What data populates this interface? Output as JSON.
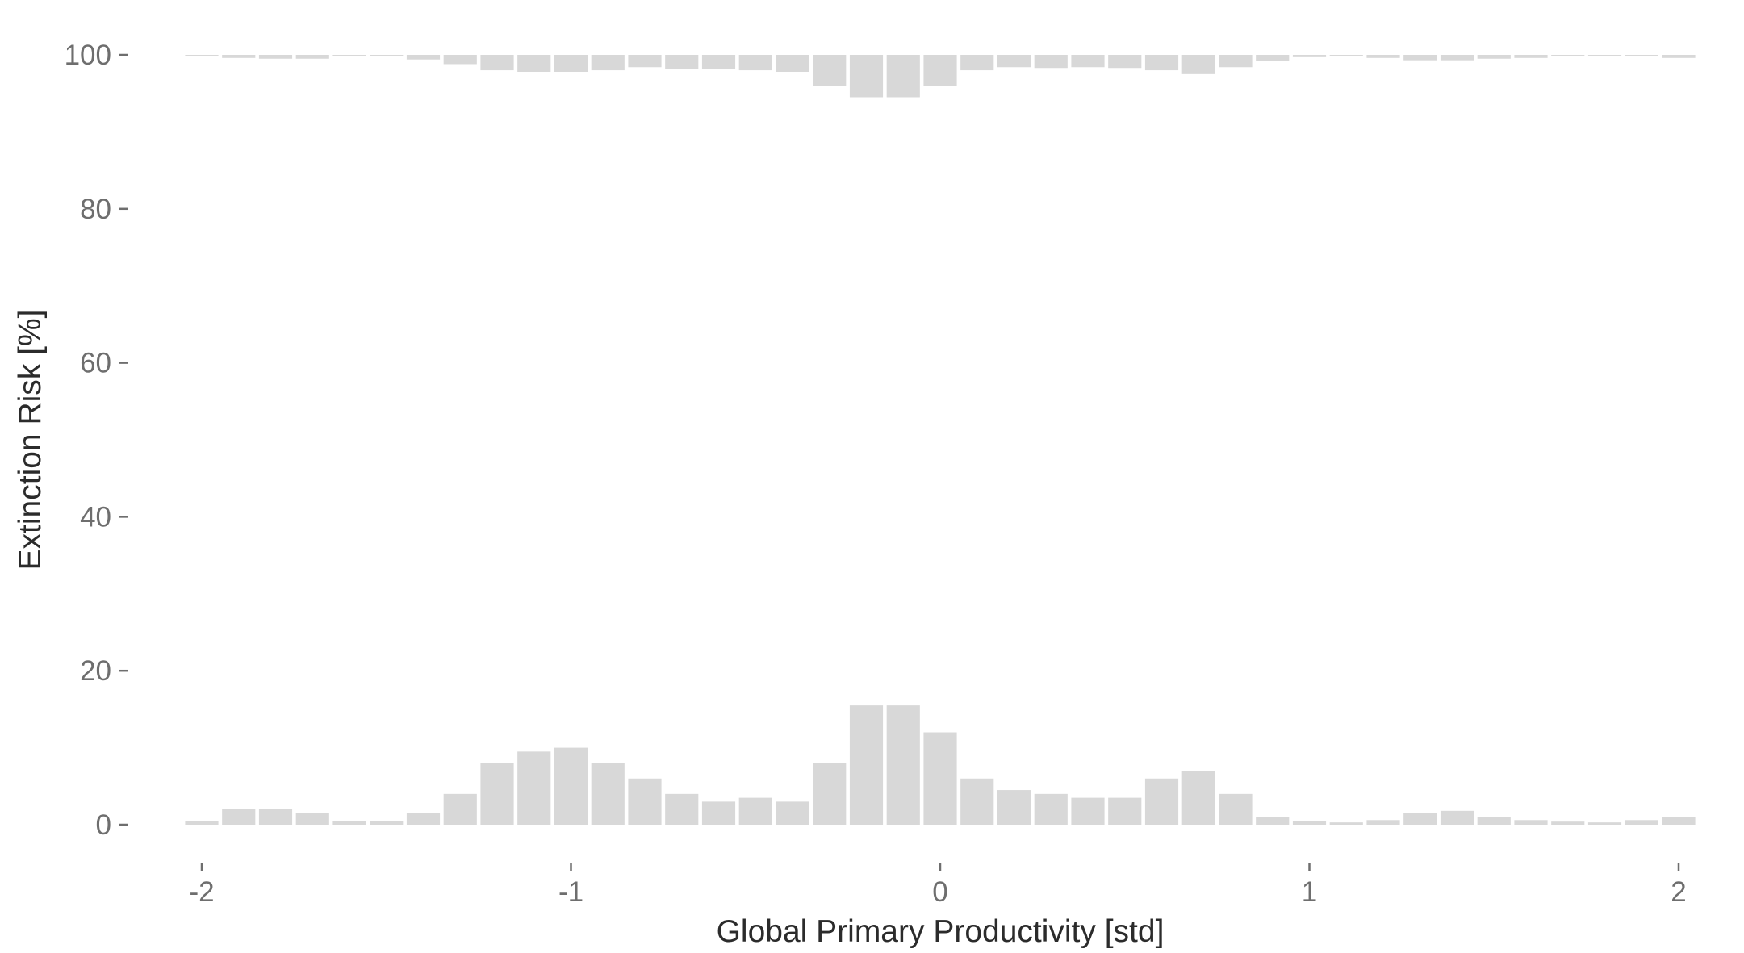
{
  "chart_data": {
    "type": "bar",
    "xlabel": "Global Primary Productivity [std]",
    "ylabel": "Extinction Risk [%]",
    "xlim": [
      -2.04,
      2.04
    ],
    "ylim": [
      0,
      100
    ],
    "xticks": [
      -2,
      -1,
      0,
      1,
      2
    ],
    "xtick_labels": [
      "-2",
      "-1",
      "0",
      "1",
      "2"
    ],
    "yticks": [
      0,
      20,
      40,
      60,
      80,
      100
    ],
    "ytick_labels": [
      "0",
      "20",
      "40",
      "60",
      "80",
      "100"
    ],
    "grid": false,
    "legend": "none",
    "bar_color": "#d8d8d8",
    "series": [
      {
        "description": "Bars rising from 0 (lower band)",
        "baseline": 0,
        "x": [
          -2.0,
          -1.9,
          -1.8,
          -1.7,
          -1.6,
          -1.5,
          -1.4,
          -1.3,
          -1.2,
          -1.1,
          -1.0,
          -0.9,
          -0.8,
          -0.7,
          -0.6,
          -0.5,
          -0.4,
          -0.3,
          -0.2,
          -0.1,
          0.0,
          0.1,
          0.2,
          0.3,
          0.4,
          0.5,
          0.6,
          0.7,
          0.8,
          0.9,
          1.0,
          1.1,
          1.2,
          1.3,
          1.4,
          1.5,
          1.6,
          1.7,
          1.8,
          1.9,
          2.0
        ],
        "values": [
          0.5,
          2.0,
          2.0,
          1.5,
          0.5,
          0.5,
          1.5,
          4.0,
          8.0,
          9.5,
          10.0,
          8.0,
          6.0,
          4.0,
          3.0,
          3.5,
          3.0,
          8.0,
          15.5,
          15.5,
          12.0,
          6.0,
          4.5,
          4.0,
          3.5,
          3.5,
          6.0,
          7.0,
          4.0,
          1.0,
          0.5,
          0.3,
          0.6,
          1.5,
          1.8,
          1.0,
          0.6,
          0.4,
          0.3,
          0.6,
          1.0
        ]
      },
      {
        "description": "Bars hanging down from 100 (upper band)",
        "baseline": 100,
        "x": [
          -2.0,
          -1.9,
          -1.8,
          -1.7,
          -1.6,
          -1.5,
          -1.4,
          -1.3,
          -1.2,
          -1.1,
          -1.0,
          -0.9,
          -0.8,
          -0.7,
          -0.6,
          -0.5,
          -0.4,
          -0.3,
          -0.2,
          -0.1,
          0.0,
          0.1,
          0.2,
          0.3,
          0.4,
          0.5,
          0.6,
          0.7,
          0.8,
          0.9,
          1.0,
          1.1,
          1.2,
          1.3,
          1.4,
          1.5,
          1.6,
          1.7,
          1.8,
          1.9,
          2.0
        ],
        "values": [
          99.8,
          99.6,
          99.5,
          99.5,
          99.8,
          99.8,
          99.4,
          98.8,
          98.0,
          97.8,
          97.8,
          98.0,
          98.4,
          98.2,
          98.2,
          98.0,
          97.8,
          96.0,
          94.5,
          94.5,
          96.0,
          98.0,
          98.4,
          98.3,
          98.4,
          98.3,
          98.0,
          97.5,
          98.4,
          99.2,
          99.7,
          99.9,
          99.6,
          99.3,
          99.3,
          99.5,
          99.6,
          99.8,
          99.9,
          99.8,
          99.6
        ]
      }
    ]
  }
}
